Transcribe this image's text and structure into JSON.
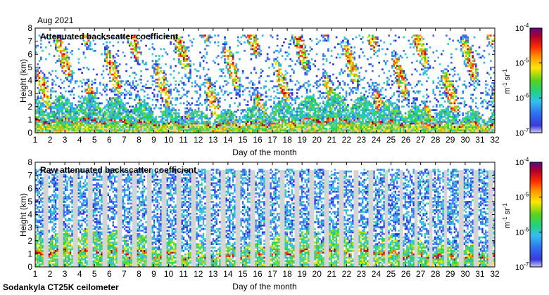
{
  "header": {
    "month_label": "Aug 2021"
  },
  "footer": {
    "instrument": "Sodankyla CT25K ceilometer"
  },
  "chart_data": [
    {
      "type": "heatmap",
      "title": "Attenuated backscatter coefficient",
      "xlabel": "Day of the month",
      "ylabel": "Height (km)",
      "xlim": [
        1,
        32
      ],
      "ylim": [
        0,
        8
      ],
      "xticks": [
        "1",
        "2",
        "3",
        "4",
        "5",
        "6",
        "7",
        "8",
        "9",
        "10",
        "11",
        "12",
        "13",
        "14",
        "15",
        "16",
        "17",
        "18",
        "19",
        "20",
        "21",
        "22",
        "23",
        "24",
        "25",
        "26",
        "27",
        "28",
        "29",
        "30",
        "31",
        "32"
      ],
      "yticks": [
        "0",
        "1",
        "2",
        "3",
        "4",
        "5",
        "6",
        "7",
        "8"
      ],
      "colorbar": {
        "scale": "log",
        "range": [
          1e-07,
          0.0001
        ],
        "ticks": [
          "10",
          "10",
          "10",
          "10"
        ],
        "exponents": [
          "-7",
          "-6",
          "-5",
          "-4"
        ],
        "unit_base": [
          "m",
          "sr"
        ],
        "unit_exponents": [
          "-1",
          "-1"
        ]
      },
      "background_color": "#d4d4d4",
      "notes": "boundary layer 0-2 km continuous; clouds and aerosol up to ~7.5 km"
    },
    {
      "type": "heatmap",
      "title": "Raw attenuated backscatter coefficient",
      "xlabel": "Day of the month",
      "ylabel": "Height (km)",
      "xlim": [
        1,
        32
      ],
      "ylim": [
        0,
        8
      ],
      "xticks": [
        "1",
        "2",
        "3",
        "4",
        "5",
        "6",
        "7",
        "8",
        "9",
        "10",
        "11",
        "12",
        "13",
        "14",
        "15",
        "16",
        "17",
        "18",
        "19",
        "20",
        "21",
        "22",
        "23",
        "24",
        "25",
        "26",
        "27",
        "28",
        "29",
        "30",
        "31",
        "32"
      ],
      "yticks": [
        "0",
        "1",
        "2",
        "3",
        "4",
        "5",
        "6",
        "7",
        "8"
      ],
      "colorbar": {
        "scale": "log",
        "range": [
          1e-07,
          0.0001
        ],
        "ticks": [
          "10",
          "10",
          "10",
          "10"
        ],
        "exponents": [
          "-7",
          "-6",
          "-5",
          "-4"
        ],
        "unit_base": [
          "m",
          "sr"
        ],
        "unit_exponents": [
          "-1",
          "-1"
        ]
      },
      "background_color": "#d4d4d4",
      "notes": "noisy vertical stripes of signal up to ~7.5 km on every day"
    }
  ],
  "colormap": [
    "#1c0f8c",
    "#2d2fd8",
    "#3a6cf0",
    "#39b0ee",
    "#2fd2b8",
    "#25d244",
    "#8ad820",
    "#ffe600",
    "#ffa000",
    "#ff3a00",
    "#c8001a",
    "#780040",
    "#4c0a8a"
  ],
  "gap_color": "#d4d4d4"
}
